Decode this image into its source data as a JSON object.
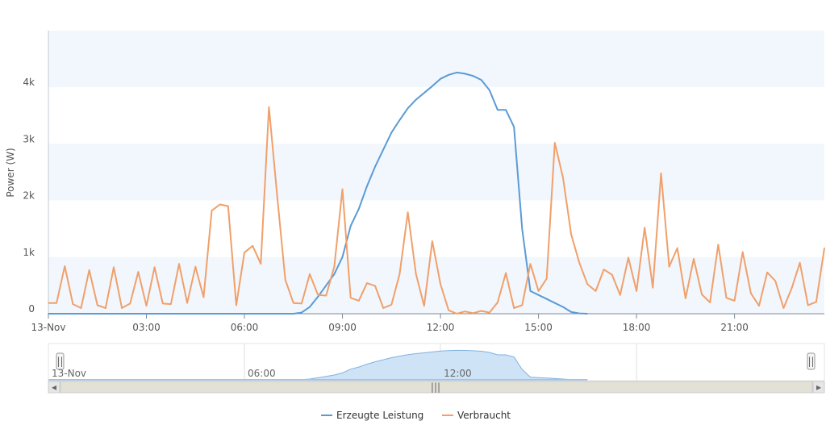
{
  "chart_data": {
    "type": "line",
    "ylabel": "Power (W)",
    "y_ticks": [
      {
        "value": 0,
        "label": "0"
      },
      {
        "value": 1000,
        "label": "1k"
      },
      {
        "value": 2000,
        "label": "2k"
      },
      {
        "value": 3000,
        "label": "3k"
      },
      {
        "value": 4000,
        "label": "4k"
      }
    ],
    "ylim": [
      0,
      5000
    ],
    "x_range_hours": [
      0,
      23.75
    ],
    "x_ticks": [
      {
        "hour": 0,
        "label": "13-Nov"
      },
      {
        "hour": 3,
        "label": "03:00"
      },
      {
        "hour": 6,
        "label": "06:00"
      },
      {
        "hour": 9,
        "label": "09:00"
      },
      {
        "hour": 12,
        "label": "12:00"
      },
      {
        "hour": 15,
        "label": "15:00"
      },
      {
        "hour": 18,
        "label": "18:00"
      },
      {
        "hour": 21,
        "label": "21:00"
      }
    ],
    "alternate_band_colors": [
      "#f2f7fd",
      "#ffffff"
    ],
    "legend_position": "bottom-center",
    "series": [
      {
        "name": "Erzeugte Leistung",
        "color": "#5b9bd5",
        "points": [
          [
            0,
            0
          ],
          [
            7.5,
            0
          ],
          [
            7.75,
            20
          ],
          [
            8,
            120
          ],
          [
            8.25,
            300
          ],
          [
            8.5,
            500
          ],
          [
            8.75,
            700
          ],
          [
            9,
            1000
          ],
          [
            9.25,
            1550
          ],
          [
            9.5,
            1850
          ],
          [
            9.75,
            2250
          ],
          [
            10,
            2600
          ],
          [
            10.25,
            2900
          ],
          [
            10.5,
            3200
          ],
          [
            10.75,
            3420
          ],
          [
            11,
            3630
          ],
          [
            11.25,
            3780
          ],
          [
            11.5,
            3900
          ],
          [
            11.75,
            4020
          ],
          [
            12,
            4150
          ],
          [
            12.25,
            4220
          ],
          [
            12.5,
            4260
          ],
          [
            12.75,
            4240
          ],
          [
            13,
            4200
          ],
          [
            13.25,
            4130
          ],
          [
            13.5,
            3950
          ],
          [
            13.75,
            3600
          ],
          [
            14,
            3600
          ],
          [
            14.25,
            3300
          ],
          [
            14.5,
            1500
          ],
          [
            14.75,
            400
          ],
          [
            15,
            330
          ],
          [
            15.25,
            260
          ],
          [
            15.5,
            190
          ],
          [
            15.75,
            120
          ],
          [
            16,
            30
          ],
          [
            16.25,
            5
          ],
          [
            16.5,
            0
          ]
        ]
      },
      {
        "name": "Verbraucht",
        "color": "#f0a06a",
        "points": [
          [
            0,
            190
          ],
          [
            0.25,
            190
          ],
          [
            0.5,
            840
          ],
          [
            0.75,
            170
          ],
          [
            1,
            100
          ],
          [
            1.25,
            770
          ],
          [
            1.5,
            150
          ],
          [
            1.75,
            100
          ],
          [
            2,
            820
          ],
          [
            2.25,
            100
          ],
          [
            2.5,
            180
          ],
          [
            2.75,
            740
          ],
          [
            3,
            140
          ],
          [
            3.25,
            820
          ],
          [
            3.5,
            180
          ],
          [
            3.75,
            170
          ],
          [
            4,
            880
          ],
          [
            4.25,
            190
          ],
          [
            4.5,
            830
          ],
          [
            4.75,
            290
          ],
          [
            5,
            1820
          ],
          [
            5.25,
            1930
          ],
          [
            5.5,
            1900
          ],
          [
            5.75,
            150
          ],
          [
            6,
            1080
          ],
          [
            6.25,
            1200
          ],
          [
            6.5,
            880
          ],
          [
            6.75,
            3650
          ],
          [
            7,
            2100
          ],
          [
            7.25,
            600
          ],
          [
            7.5,
            190
          ],
          [
            7.75,
            180
          ],
          [
            8,
            700
          ],
          [
            8.25,
            330
          ],
          [
            8.5,
            320
          ],
          [
            8.75,
            830
          ],
          [
            9,
            2200
          ],
          [
            9.25,
            280
          ],
          [
            9.5,
            230
          ],
          [
            9.75,
            540
          ],
          [
            10,
            490
          ],
          [
            10.25,
            100
          ],
          [
            10.5,
            160
          ],
          [
            10.75,
            700
          ],
          [
            11,
            1790
          ],
          [
            11.25,
            700
          ],
          [
            11.5,
            140
          ],
          [
            11.75,
            1280
          ],
          [
            12,
            520
          ],
          [
            12.25,
            60
          ],
          [
            12.5,
            0
          ],
          [
            12.75,
            40
          ],
          [
            13,
            10
          ],
          [
            13.25,
            50
          ],
          [
            13.5,
            20
          ],
          [
            13.75,
            200
          ],
          [
            14,
            720
          ],
          [
            14.25,
            100
          ],
          [
            14.5,
            150
          ],
          [
            14.75,
            880
          ],
          [
            15,
            400
          ],
          [
            15.25,
            620
          ],
          [
            15.5,
            3020
          ],
          [
            15.75,
            2400
          ],
          [
            16,
            1400
          ],
          [
            16.25,
            900
          ],
          [
            16.5,
            520
          ],
          [
            16.75,
            400
          ],
          [
            17,
            780
          ],
          [
            17.25,
            690
          ],
          [
            17.5,
            330
          ],
          [
            17.75,
            990
          ],
          [
            18,
            400
          ],
          [
            18.25,
            1520
          ],
          [
            18.5,
            460
          ],
          [
            18.75,
            2480
          ],
          [
            19,
            830
          ],
          [
            19.25,
            1160
          ],
          [
            19.5,
            270
          ],
          [
            19.75,
            970
          ],
          [
            20,
            340
          ],
          [
            20.25,
            200
          ],
          [
            20.5,
            1220
          ],
          [
            20.75,
            280
          ],
          [
            21,
            230
          ],
          [
            21.25,
            1090
          ],
          [
            21.5,
            360
          ],
          [
            21.75,
            140
          ],
          [
            22,
            730
          ],
          [
            22.25,
            580
          ],
          [
            22.5,
            100
          ],
          [
            22.75,
            450
          ],
          [
            23,
            900
          ],
          [
            23.25,
            150
          ],
          [
            23.5,
            210
          ],
          [
            23.75,
            1160
          ]
        ]
      }
    ]
  },
  "navigator": {
    "labels": [
      {
        "hour": 0,
        "label": "13-Nov"
      },
      {
        "hour": 6,
        "label": "06:00"
      },
      {
        "hour": 12,
        "label": "12:00"
      }
    ],
    "grid_hours": [
      6,
      12,
      18
    ],
    "handle_glyph": "||",
    "scroll_grip_glyph": "|||",
    "scroll_left_arrow": "◂",
    "scroll_right_arrow": "▸"
  },
  "legend": {
    "items": [
      {
        "label": "Erzeugte Leistung",
        "color": "#5b9bd5"
      },
      {
        "label": "Verbraucht",
        "color": "#f0a06a"
      }
    ]
  }
}
